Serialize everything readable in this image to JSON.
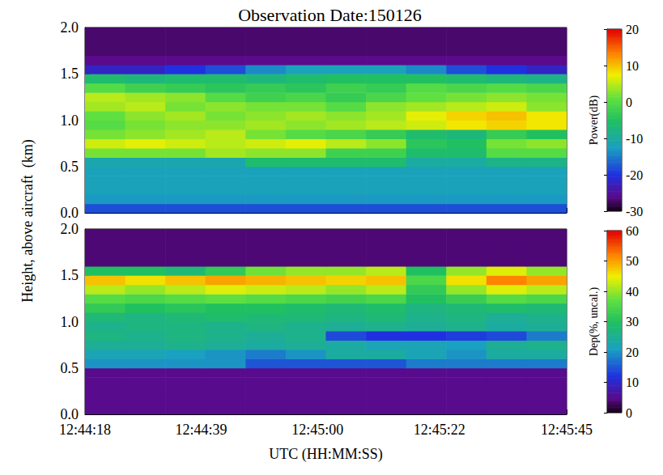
{
  "chart_data": [
    {
      "type": "heatmap",
      "title": "Observation Date:150126",
      "ylabel": "Height, above aircraft  (km)",
      "xlim": [
        45858,
        45945
      ],
      "xticks": [
        {
          "value": 45858,
          "label": "12:44:18"
        },
        {
          "value": 45879,
          "label": "12:44:39"
        },
        {
          "value": 45900,
          "label": "12:45:00"
        },
        {
          "value": 45922,
          "label": "12:45:22"
        },
        {
          "value": 45945,
          "label": "12:45:45"
        }
      ],
      "ylim": [
        0,
        2
      ],
      "yticks": [
        {
          "value": 0,
          "label": "0.0"
        },
        {
          "value": 0.5,
          "label": "0.5"
        },
        {
          "value": 1,
          "label": "1.0"
        },
        {
          "value": 1.5,
          "label": "1.5"
        },
        {
          "value": 2,
          "label": "2.0"
        }
      ],
      "tick_labels": "y",
      "x_edges": [
        45858,
        45865.25,
        45872.5,
        45879.75,
        45887,
        45894.25,
        45901.5,
        45908.75,
        45916,
        45923.25,
        45930.5,
        45937.75,
        45945
      ],
      "y_edges": [
        0,
        0.1,
        0.2,
        0.3,
        0.4,
        0.5,
        0.6,
        0.7,
        0.8,
        0.9,
        1,
        1.1,
        1.2,
        1.3,
        1.4,
        1.5,
        1.6,
        1.7,
        1.8,
        1.9,
        2
      ],
      "cells": [
        [
          -18,
          -18,
          -18,
          -18,
          -18,
          -18,
          -18,
          -18,
          -18,
          -18,
          -18,
          -18
        ],
        [
          -13,
          -13,
          -13,
          -13,
          -13,
          -13,
          -13,
          -13,
          -13,
          -13,
          -13,
          -13
        ],
        [
          -12,
          -12,
          -12,
          -12,
          -12,
          -12,
          -12,
          -12,
          -12,
          -12,
          -12,
          -12
        ],
        [
          -12,
          -12,
          -12,
          -12,
          -12,
          -12,
          -12,
          -12,
          -12,
          -12,
          -12,
          -12
        ],
        [
          -12,
          -12,
          -12,
          -12,
          -12,
          -12,
          -12,
          -12,
          -12,
          -12,
          -12,
          -12
        ],
        [
          -11,
          -11,
          -11,
          -11,
          -6,
          -6,
          -6,
          -6,
          -10,
          -10,
          -8,
          -8
        ],
        [
          2,
          2,
          2,
          4,
          3,
          3,
          -2,
          -2,
          -6,
          -6,
          0,
          0
        ],
        [
          6,
          7,
          6,
          5,
          6,
          7,
          5,
          3,
          -4,
          -5,
          2,
          3
        ],
        [
          2,
          3,
          4,
          5,
          2,
          0,
          -1,
          -3,
          -6,
          -7,
          -3,
          -5
        ],
        [
          0,
          2,
          3,
          3,
          4,
          3,
          4,
          5,
          6,
          8,
          9,
          8
        ],
        [
          1,
          3,
          4,
          2,
          3,
          4,
          3,
          4,
          7,
          9,
          10,
          8
        ],
        [
          4,
          5,
          2,
          3,
          2,
          2,
          0,
          3,
          4,
          5,
          6,
          3
        ],
        [
          5,
          4,
          3,
          0,
          -2,
          -1,
          -3,
          -1,
          1,
          2,
          3,
          2
        ],
        [
          0,
          -2,
          -3,
          -4,
          -3,
          -4,
          -2,
          -3,
          0,
          -1,
          0,
          -1
        ],
        [
          -6,
          -7,
          -6,
          -6,
          -7,
          -6,
          -5,
          -5,
          -5,
          -6,
          -7,
          -8
        ],
        [
          -22,
          -22,
          -20,
          -18,
          -14,
          -12,
          -12,
          -12,
          -14,
          -18,
          -20,
          -22
        ],
        [
          -26,
          -26,
          -26,
          -26,
          -26,
          -26,
          -26,
          -26,
          -26,
          -26,
          -26,
          -26
        ],
        [
          -27,
          -27,
          -27,
          -27,
          -27,
          -27,
          -27,
          -27,
          -27,
          -27,
          -27,
          -27
        ],
        [
          -27,
          -27,
          -27,
          -27,
          -27,
          -27,
          -27,
          -27,
          -27,
          -27,
          -27,
          -27
        ],
        [
          -27,
          -27,
          -27,
          -27,
          -27,
          -27,
          -27,
          -27,
          -27,
          -27,
          -27,
          -27
        ]
      ],
      "colorbar": {
        "label": "Power(dB)",
        "range": [
          -30,
          20
        ],
        "ticks": [
          -30,
          -20,
          -10,
          0,
          10,
          20
        ]
      }
    },
    {
      "type": "heatmap",
      "xlabel": "UTC (HH:MM:SS)",
      "xlim": [
        45858,
        45945
      ],
      "xticks": [
        {
          "value": 45858,
          "label": "12:44:18"
        },
        {
          "value": 45879,
          "label": "12:44:39"
        },
        {
          "value": 45900,
          "label": "12:45:00"
        },
        {
          "value": 45922,
          "label": "12:45:22"
        },
        {
          "value": 45945,
          "label": "12:45:45"
        }
      ],
      "ylim": [
        0,
        2
      ],
      "yticks": [
        {
          "value": 0,
          "label": "0.0"
        },
        {
          "value": 0.5,
          "label": "0.5"
        },
        {
          "value": 1,
          "label": "1.0"
        },
        {
          "value": 1.5,
          "label": "1.5"
        },
        {
          "value": 2,
          "label": "2.0"
        }
      ],
      "x_edges": [
        45858,
        45865.25,
        45872.5,
        45879.75,
        45887,
        45894.25,
        45901.5,
        45908.75,
        45916,
        45923.25,
        45930.5,
        45937.75,
        45945
      ],
      "y_edges": [
        0,
        0.1,
        0.2,
        0.3,
        0.4,
        0.5,
        0.6,
        0.7,
        0.8,
        0.9,
        1,
        1.1,
        1.2,
        1.3,
        1.4,
        1.5,
        1.6,
        1.7,
        1.8,
        1.9,
        2
      ],
      "cells": [
        [
          5,
          5,
          5,
          5,
          5,
          5,
          5,
          5,
          5,
          5,
          5,
          5
        ],
        [
          5,
          5,
          5,
          5,
          5,
          5,
          5,
          5,
          5,
          5,
          5,
          5
        ],
        [
          5,
          5,
          5,
          5,
          5,
          5,
          5,
          5,
          5,
          5,
          5,
          5
        ],
        [
          5,
          5,
          5,
          5,
          5,
          5,
          5,
          5,
          5,
          5,
          5,
          5
        ],
        [
          5,
          5,
          5,
          5,
          5,
          5,
          5,
          5,
          5,
          5,
          5,
          5
        ],
        [
          20,
          20,
          20,
          20,
          15,
          15,
          15,
          15,
          18,
          18,
          18,
          18
        ],
        [
          22,
          22,
          21,
          20,
          18,
          20,
          24,
          24,
          22,
          20,
          24,
          24
        ],
        [
          25,
          25,
          26,
          25,
          24,
          25,
          24,
          22,
          22,
          21,
          25,
          26
        ],
        [
          27,
          26,
          27,
          26,
          25,
          26,
          14,
          12,
          12,
          13,
          14,
          18
        ],
        [
          26,
          27,
          27,
          26,
          27,
          26,
          25,
          26,
          25,
          26,
          24,
          25
        ],
        [
          28,
          27,
          28,
          29,
          28,
          28,
          27,
          28,
          26,
          27,
          25,
          26
        ],
        [
          32,
          30,
          31,
          30,
          30,
          29,
          28,
          29,
          27,
          28,
          29,
          28
        ],
        [
          36,
          35,
          36,
          37,
          36,
          35,
          34,
          35,
          30,
          33,
          36,
          35
        ],
        [
          42,
          40,
          42,
          44,
          43,
          42,
          40,
          42,
          32,
          40,
          44,
          42
        ],
        [
          48,
          46,
          48,
          50,
          49,
          48,
          47,
          48,
          35,
          46,
          52,
          50
        ],
        [
          30,
          30,
          28,
          32,
          38,
          40,
          40,
          42,
          30,
          40,
          44,
          40
        ],
        [
          4,
          4,
          4,
          4,
          4,
          4,
          4,
          4,
          4,
          4,
          4,
          4
        ],
        [
          4,
          4,
          4,
          4,
          4,
          4,
          4,
          4,
          4,
          4,
          4,
          4
        ],
        [
          4,
          4,
          4,
          4,
          4,
          4,
          4,
          4,
          4,
          4,
          4,
          4
        ],
        [
          4,
          4,
          4,
          4,
          4,
          4,
          4,
          4,
          4,
          4,
          4,
          4
        ]
      ],
      "colorbar": {
        "label": "Dep(%, uncal.)",
        "range": [
          0,
          60
        ],
        "ticks": [
          0,
          10,
          20,
          30,
          40,
          50,
          60
        ]
      }
    }
  ]
}
